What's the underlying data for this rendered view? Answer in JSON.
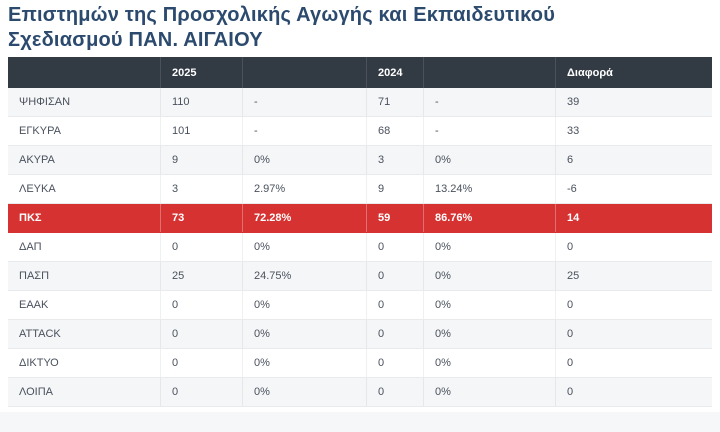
{
  "title": {
    "line1": "Επιστημών της Προσχολικής Αγωγής και Εκπαιδευτικού",
    "line2": "Σχεδιασμού ΠΑΝ. ΑΙΓΑΙΟΥ"
  },
  "colors": {
    "title_text": "#2b4a6e",
    "header_bg": "#323a44",
    "header_text": "#ffffff",
    "highlight_bg": "#d63231",
    "highlight_text": "#ffffff",
    "row_text": "#4a515d",
    "stripe_bg": "#f5f6f7",
    "row_border": "#e8eaec",
    "bottom_strip_bg": "#f6f7f8"
  },
  "chart_data": {
    "type": "table",
    "title": "Επιστημών της Προσχολικής Αγωγής και Εκπαιδευτικού Σχεδιασμού ΠΑΝ. ΑΙΓΑΙΟΥ",
    "header": [
      "",
      "2025",
      "",
      "2024",
      "",
      "Διαφορά"
    ],
    "rows": [
      {
        "cells": [
          "ΨΗΦΙΣΑΝ",
          "110",
          "-",
          "71",
          "-",
          "39"
        ],
        "highlighted": false
      },
      {
        "cells": [
          "ΕΓΚΥΡΑ",
          "101",
          "-",
          "68",
          "-",
          "33"
        ],
        "highlighted": false
      },
      {
        "cells": [
          "ΑΚΥΡΑ",
          "9",
          "0%",
          "3",
          "0%",
          "6"
        ],
        "highlighted": false
      },
      {
        "cells": [
          "ΛΕΥΚΑ",
          "3",
          "2.97%",
          "9",
          "13.24%",
          "-6"
        ],
        "highlighted": false
      },
      {
        "cells": [
          "ΠΚΣ",
          "73",
          "72.28%",
          "59",
          "86.76%",
          "14"
        ],
        "highlighted": true
      },
      {
        "cells": [
          "ΔΑΠ",
          "0",
          "0%",
          "0",
          "0%",
          "0"
        ],
        "highlighted": false
      },
      {
        "cells": [
          "ΠΑΣΠ",
          "25",
          "24.75%",
          "0",
          "0%",
          "25"
        ],
        "highlighted": false
      },
      {
        "cells": [
          "ΕΑΑΚ",
          "0",
          "0%",
          "0",
          "0%",
          "0"
        ],
        "highlighted": false
      },
      {
        "cells": [
          "ATTACK",
          "0",
          "0%",
          "0",
          "0%",
          "0"
        ],
        "highlighted": false
      },
      {
        "cells": [
          "ΔΙΚΤΥΟ",
          "0",
          "0%",
          "0",
          "0%",
          "0"
        ],
        "highlighted": false
      },
      {
        "cells": [
          "ΛΟΙΠΑ",
          "0",
          "0%",
          "0",
          "0%",
          "0"
        ],
        "highlighted": false
      }
    ]
  }
}
